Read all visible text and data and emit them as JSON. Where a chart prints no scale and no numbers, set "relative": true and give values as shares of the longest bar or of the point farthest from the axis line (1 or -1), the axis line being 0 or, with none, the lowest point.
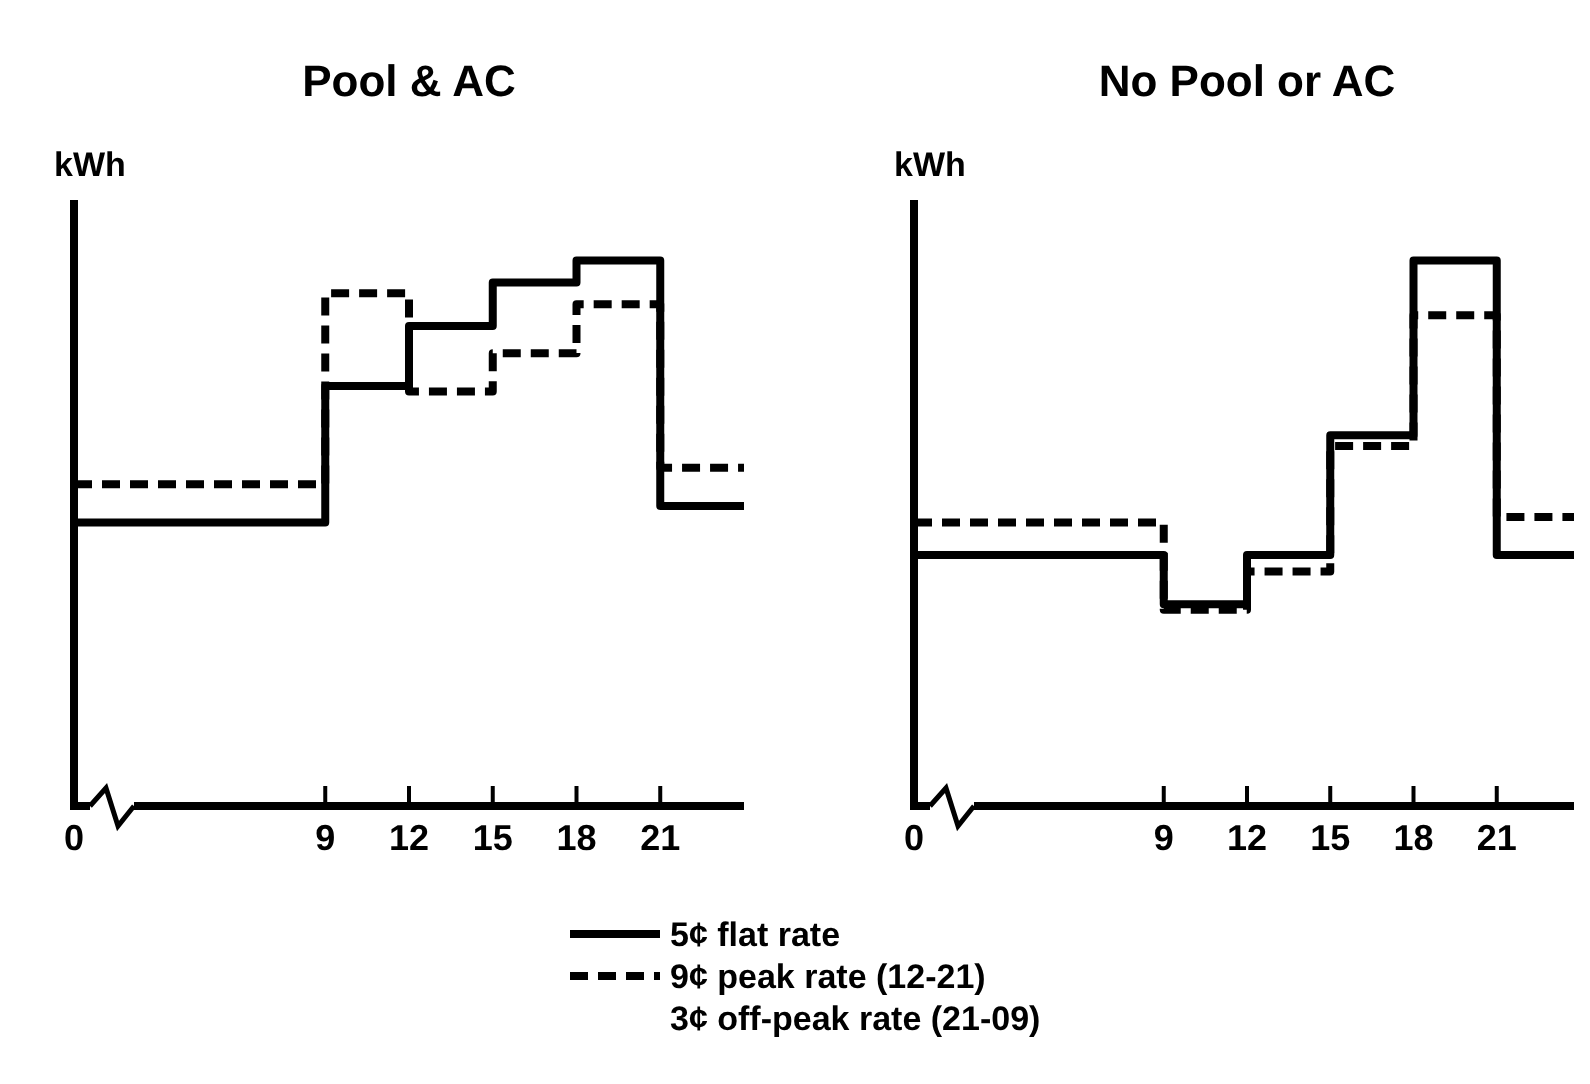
{
  "chart_data": [
    {
      "type": "step",
      "title": "Pool & AC",
      "ylabel": "kWh",
      "relative": true,
      "x": [
        0,
        9,
        12,
        15,
        18,
        21,
        24
      ],
      "xlim": [
        0,
        24
      ],
      "xticks": [
        0,
        9,
        12,
        15,
        18,
        21
      ],
      "legend": "bottom",
      "grid": false,
      "series": [
        {
          "name": "5¢ flat rate",
          "color": "#000000",
          "line_style": "solid",
          "values": [
            0.52,
            0.77,
            0.88,
            0.96,
            1,
            0.55,
            0.55
          ]
        },
        {
          "name": "9¢ peak rate (12-21)\n3¢ off-peak rate (21-09)",
          "color": "#000000",
          "line_style": "dashed",
          "values": [
            0.59,
            0.94,
            0.76,
            0.83,
            0.92,
            0.62,
            0.62
          ]
        }
      ]
    },
    {
      "type": "step",
      "title": "No Pool or AC",
      "ylabel": "kWh",
      "relative": true,
      "x": [
        0,
        9,
        12,
        15,
        18,
        21,
        24
      ],
      "xlim": [
        0,
        24
      ],
      "xticks": [
        0,
        9,
        12,
        15,
        18,
        21
      ],
      "grid": false,
      "series": [
        {
          "color": "#000000",
          "line_style": "solid",
          "values": [
            0.46,
            0.37,
            0.46,
            0.68,
            1,
            0.46,
            0.46
          ]
        },
        {
          "color": "#000000",
          "line_style": "dashed",
          "values": [
            0.52,
            0.36,
            0.43,
            0.66,
            0.9,
            0.53,
            0.53
          ]
        }
      ]
    }
  ]
}
